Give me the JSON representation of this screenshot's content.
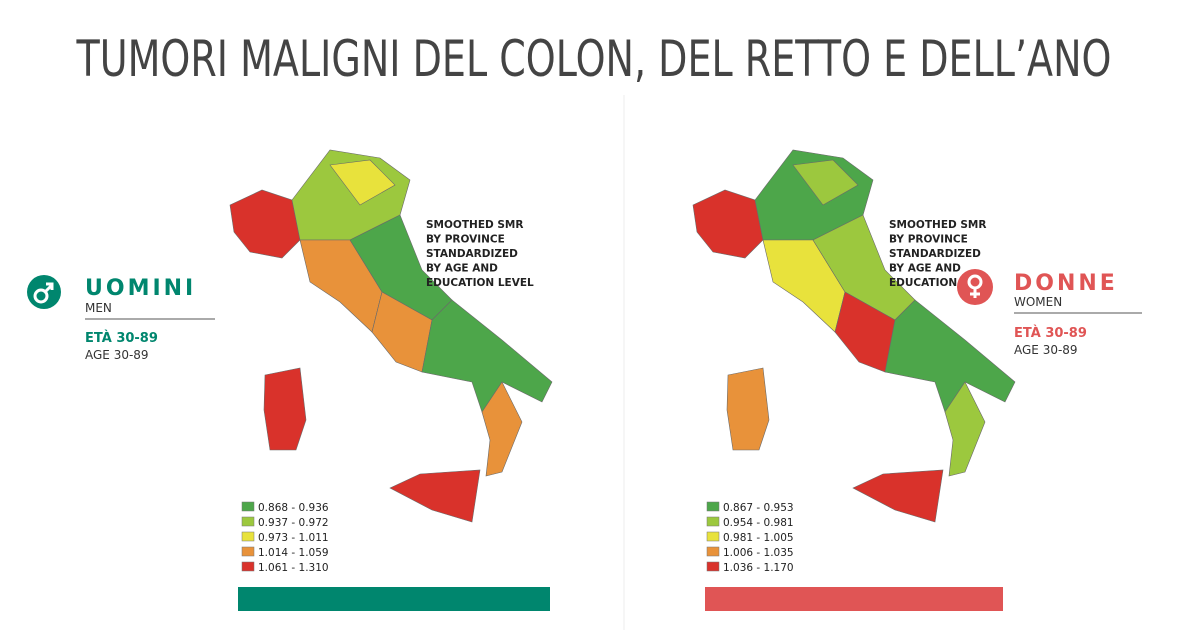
{
  "title": "TUMORI MALIGNI DEL COLON, DEL RETTO E DELL’ANO",
  "panels": [
    {
      "label": "UOMINI",
      "sublabel": "MEN",
      "age_it": "ETÀ 30-89",
      "age_en": "AGE 30-89",
      "note": [
        "SMOOTHED SMR",
        "BY PROVINCE",
        "STANDARDIZED",
        "BY AGE AND",
        "EDUCATION LEVEL"
      ],
      "legend": [
        {
          "label": "0.868 - 0.936",
          "color": "#4da64a"
        },
        {
          "label": "0.937 - 0.972",
          "color": "#9cc83e"
        },
        {
          "label": "0.973 - 1.011",
          "color": "#e8e23c"
        },
        {
          "label": "1.014 - 1.059",
          "color": "#e8923a"
        },
        {
          "label": "1.061 - 1.310",
          "color": "#d9322b"
        }
      ]
    },
    {
      "label": "DONNE",
      "sublabel": "WOMEN",
      "age_it": "ETÀ 30-89",
      "age_en": "AGE 30-89",
      "note": [
        "SMOOTHED SMR",
        "BY PROVINCE",
        "STANDARDIZED",
        "BY AGE AND",
        "EDUCATION"
      ],
      "legend": [
        {
          "label": "0.867 - 0.953",
          "color": "#4da64a"
        },
        {
          "label": "0.954 - 0.981",
          "color": "#9cc83e"
        },
        {
          "label": "0.981 - 1.005",
          "color": "#e8e23c"
        },
        {
          "label": "1.006 - 1.035",
          "color": "#e8923a"
        },
        {
          "label": "1.036 - 1.170",
          "color": "#d9322b"
        }
      ]
    }
  ]
}
